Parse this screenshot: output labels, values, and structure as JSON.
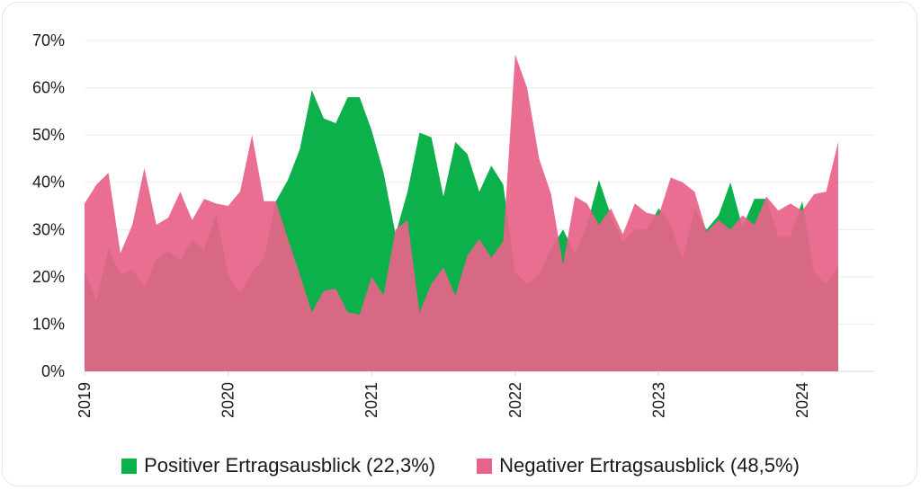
{
  "chart_data": {
    "type": "area",
    "x_start": "2019-01",
    "x_end": "2024-03",
    "x_frequency": "monthly",
    "xticks": [
      "2019",
      "2020",
      "2021",
      "2022",
      "2023",
      "2024"
    ],
    "yticks": [
      "0%",
      "10%",
      "20%",
      "30%",
      "40%",
      "50%",
      "60%",
      "70%"
    ],
    "ylim": [
      0,
      70
    ],
    "grid": true,
    "legend_position": "bottom",
    "series": [
      {
        "name": "Positiver Ertragsausblick (22,3%)",
        "color": "#0cb14b",
        "values": [
          21,
          15,
          26,
          20.5,
          21.5,
          18,
          23.5,
          25.5,
          23.5,
          28,
          25.5,
          33.5,
          20.5,
          16.5,
          21,
          24,
          36,
          40.5,
          47,
          59.5,
          53.5,
          52.5,
          58,
          58,
          51,
          42,
          29,
          38,
          50.5,
          49.5,
          37,
          48.5,
          46,
          38,
          43.5,
          39.5,
          21,
          18.5,
          20.5,
          26,
          30,
          25,
          31,
          40.5,
          33,
          27.5,
          30,
          30,
          34.5,
          31,
          23.5,
          34.5,
          30,
          33,
          40,
          30.5,
          36.5,
          36.5,
          28.5,
          28.5,
          36,
          21,
          18.5,
          22.3
        ]
      },
      {
        "name": "Negativer Ertragsausblick (48,5%)",
        "color": "#e8638a",
        "values": [
          35.5,
          39.5,
          42,
          25,
          31,
          43,
          31,
          32.5,
          38,
          32,
          36.5,
          35.5,
          35,
          38,
          50,
          36,
          36,
          28,
          20.5,
          12.5,
          17,
          17.5,
          12.5,
          12,
          20,
          16,
          30,
          32,
          12.5,
          18.5,
          22,
          16,
          24.5,
          28,
          24,
          27.5,
          67,
          60,
          45,
          37.5,
          22.5,
          37,
          35.5,
          31,
          34.5,
          29,
          35.5,
          33.5,
          33,
          41,
          40,
          38,
          29.5,
          32,
          30,
          33,
          31,
          37,
          34,
          35.5,
          34,
          37.5,
          38,
          48.5
        ]
      }
    ]
  }
}
